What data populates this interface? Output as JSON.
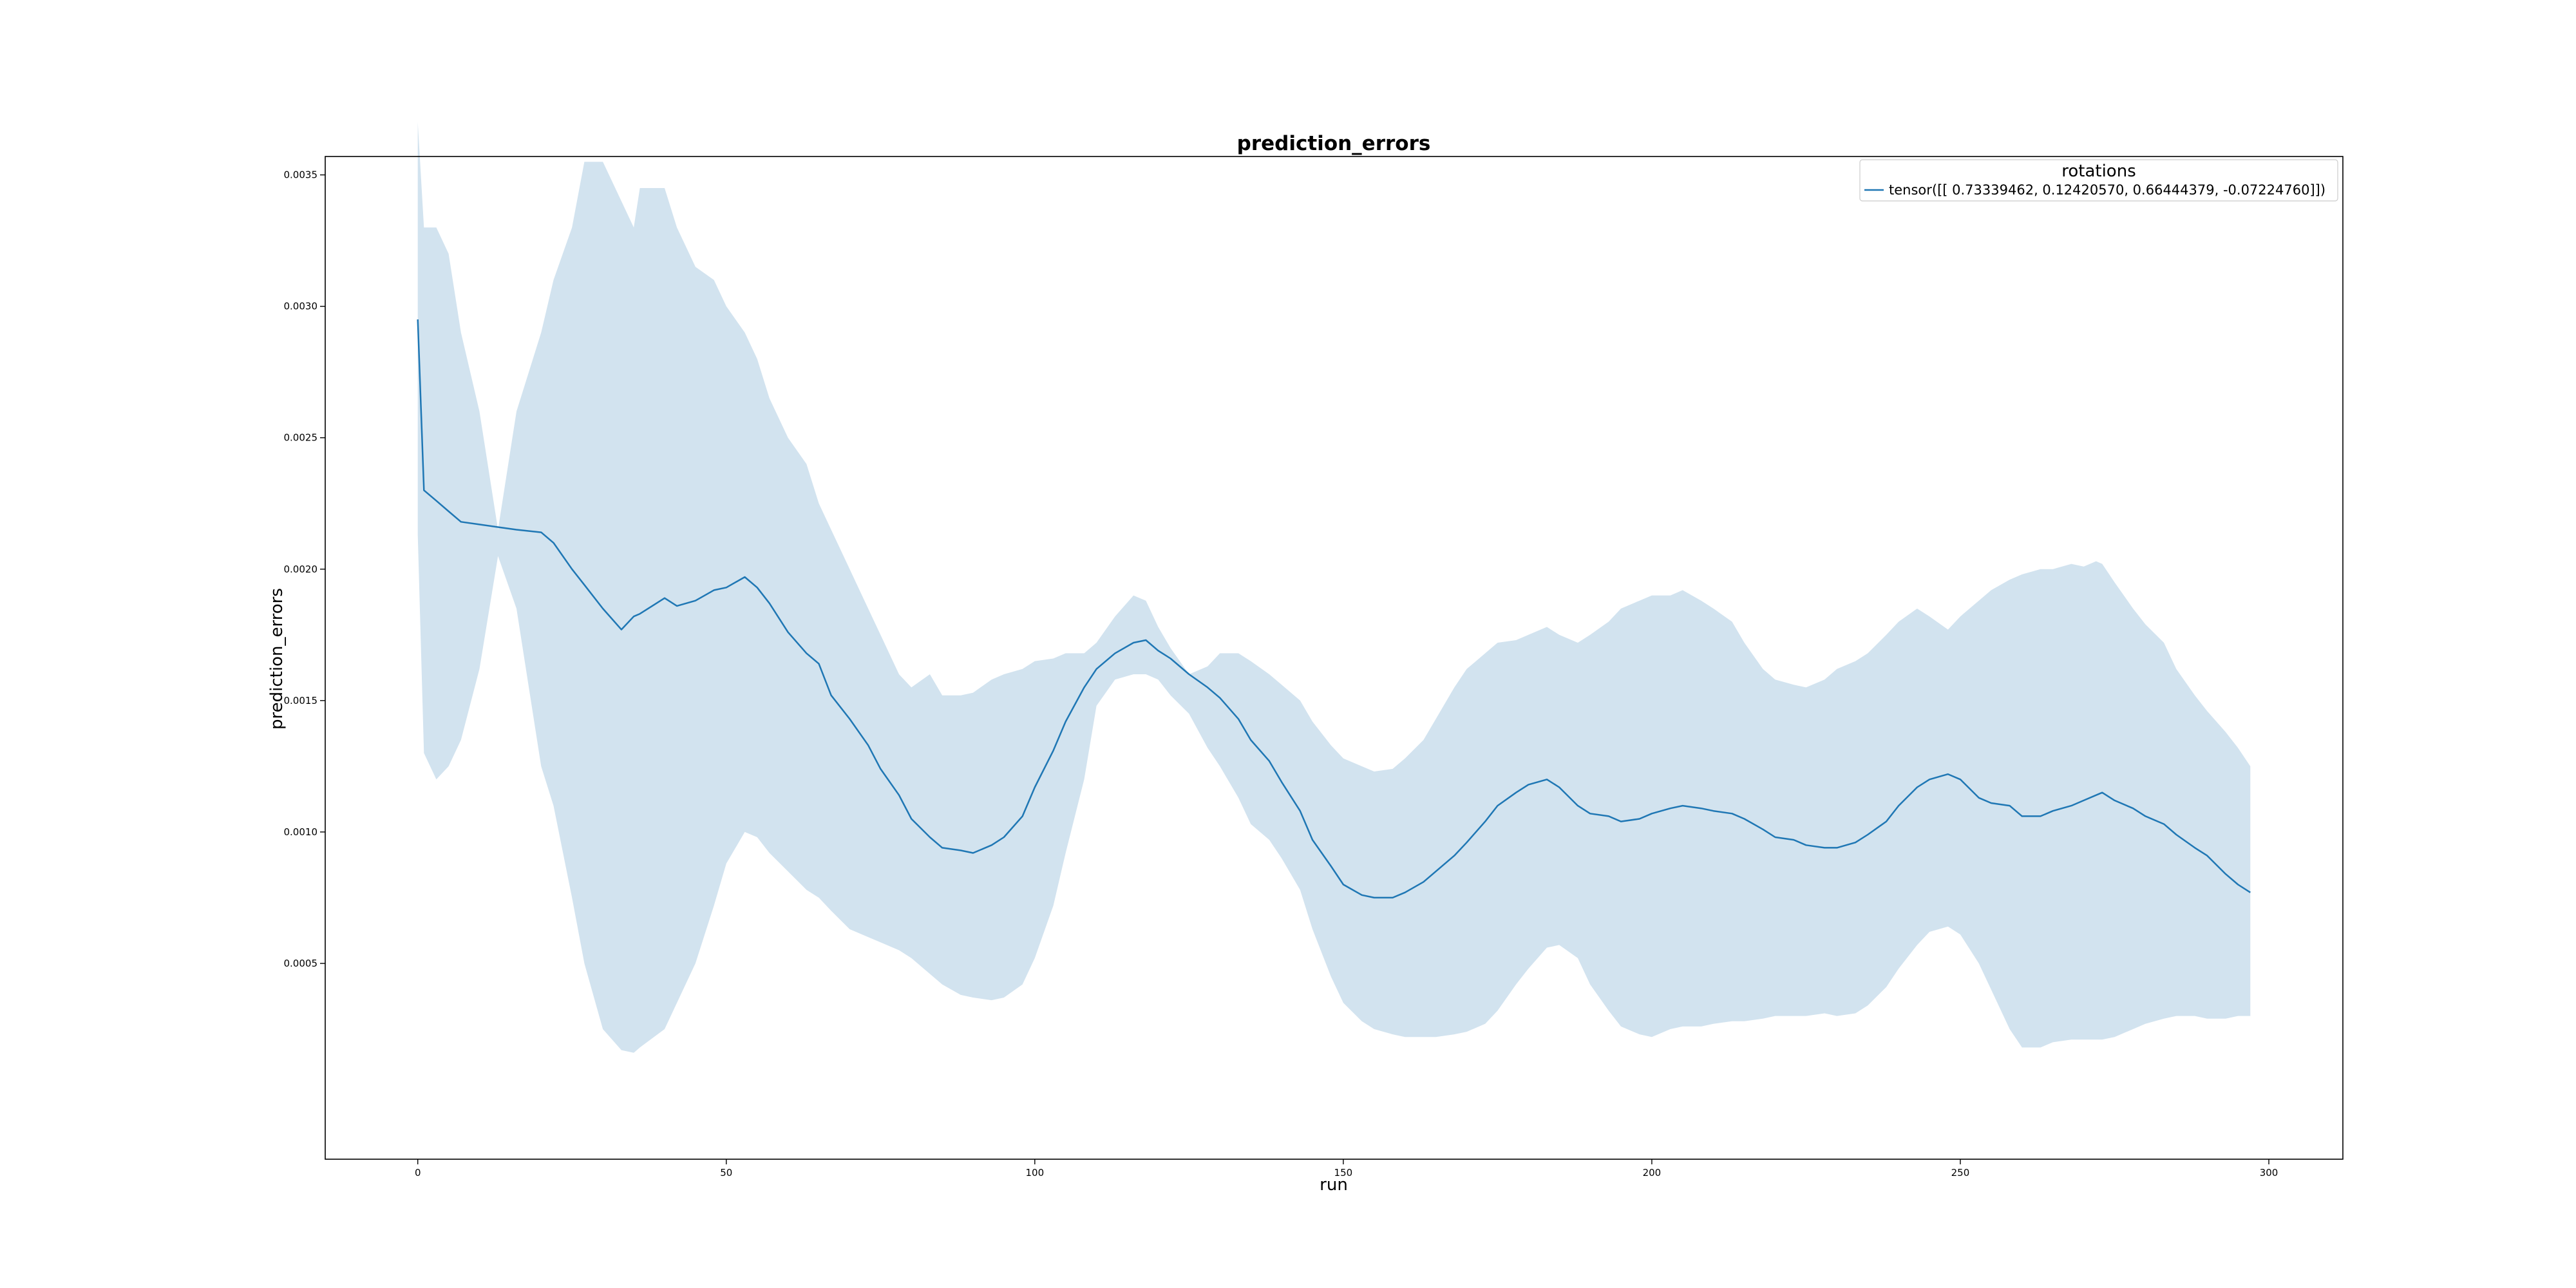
{
  "chart_data": {
    "type": "line",
    "title": "prediction_errors",
    "xlabel": "run",
    "ylabel": "prediction_errors",
    "xlim": [
      -15,
      312
    ],
    "ylim": [
      -0.000245,
      0.00357
    ],
    "x_ticks": [
      0,
      50,
      100,
      150,
      200,
      250,
      300
    ],
    "y_ticks": [
      0.0005,
      0.001,
      0.0015,
      0.002,
      0.0025,
      0.003,
      0.0035
    ],
    "x_tick_labels": [
      "0",
      "50",
      "100",
      "150",
      "200",
      "250",
      "300"
    ],
    "y_tick_labels": [
      "0.0005",
      "0.0010",
      "0.0015",
      "0.0020",
      "0.0025",
      "0.0030",
      "0.0035"
    ],
    "grid": false,
    "legend": {
      "title": "rotations",
      "position": "top-right",
      "entries": [
        "tensor([[ 0.73339462,  0.12420570,  0.66444379, -0.07224760]])"
      ]
    },
    "colors": {
      "line": "#1f77b4",
      "band": "#d2e3ef"
    },
    "series": [
      {
        "name": "tensor([[ 0.73339462,  0.12420570,  0.66444379, -0.07224760]])",
        "x": [
          0,
          1,
          3,
          5,
          7,
          10,
          13,
          16,
          20,
          22,
          25,
          27,
          30,
          33,
          35,
          36,
          40,
          42,
          45,
          48,
          50,
          53,
          55,
          57,
          60,
          63,
          65,
          67,
          70,
          73,
          75,
          78,
          80,
          83,
          85,
          88,
          90,
          93,
          95,
          98,
          100,
          103,
          105,
          108,
          110,
          113,
          116,
          118,
          120,
          122,
          125,
          128,
          130,
          133,
          135,
          138,
          140,
          143,
          145,
          148,
          150,
          153,
          155,
          158,
          160,
          163,
          165,
          168,
          170,
          173,
          175,
          178,
          180,
          183,
          185,
          188,
          190,
          193,
          195,
          198,
          200,
          203,
          205,
          208,
          210,
          213,
          215,
          218,
          220,
          223,
          225,
          228,
          230,
          233,
          235,
          238,
          240,
          243,
          245,
          248,
          250,
          253,
          255,
          258,
          260,
          263,
          265,
          268,
          270,
          272,
          273,
          275,
          278,
          280,
          283,
          285,
          288,
          290,
          293,
          295,
          297
        ],
        "y": [
          0.00295,
          0.0023,
          0.00226,
          0.00222,
          0.00218,
          0.00217,
          0.00216,
          0.00215,
          0.00214,
          0.0021,
          0.002,
          0.00194,
          0.00185,
          0.00177,
          0.00182,
          0.00183,
          0.00189,
          0.00186,
          0.00188,
          0.00192,
          0.00193,
          0.00197,
          0.00193,
          0.00187,
          0.00176,
          0.00168,
          0.00164,
          0.00152,
          0.00143,
          0.00133,
          0.00124,
          0.00114,
          0.00105,
          0.00098,
          0.00094,
          0.00093,
          0.00092,
          0.00095,
          0.00098,
          0.00106,
          0.00117,
          0.00131,
          0.00142,
          0.00155,
          0.00162,
          0.00168,
          0.00172,
          0.00173,
          0.00169,
          0.00166,
          0.0016,
          0.00155,
          0.00151,
          0.00143,
          0.00135,
          0.00127,
          0.00119,
          0.00108,
          0.00097,
          0.00087,
          0.0008,
          0.00076,
          0.00075,
          0.00075,
          0.00077,
          0.00081,
          0.00085,
          0.00091,
          0.00096,
          0.00104,
          0.0011,
          0.00115,
          0.00118,
          0.0012,
          0.00117,
          0.0011,
          0.00107,
          0.00106,
          0.00104,
          0.00105,
          0.00107,
          0.00109,
          0.0011,
          0.00109,
          0.00108,
          0.00107,
          0.00105,
          0.00101,
          0.00098,
          0.00097,
          0.00095,
          0.00094,
          0.00094,
          0.00096,
          0.00099,
          0.00104,
          0.0011,
          0.00117,
          0.0012,
          0.00122,
          0.0012,
          0.00113,
          0.00111,
          0.0011,
          0.00106,
          0.00106,
          0.00108,
          0.0011,
          0.00112,
          0.00114,
          0.00115,
          0.00112,
          0.00109,
          0.00106,
          0.00103,
          0.00099,
          0.00094,
          0.00091,
          0.00084,
          0.0008,
          0.00077
        ],
        "lower": [
          0.00213,
          0.0013,
          0.0012,
          0.00125,
          0.00135,
          0.00162,
          0.00205,
          0.00185,
          0.00125,
          0.0011,
          0.00075,
          0.0005,
          0.00025,
          0.00017,
          0.00016,
          0.00018,
          0.00025,
          0.00035,
          0.0005,
          0.00072,
          0.00088,
          0.001,
          0.00098,
          0.00092,
          0.00085,
          0.00078,
          0.00075,
          0.0007,
          0.00063,
          0.0006,
          0.00058,
          0.00055,
          0.00052,
          0.00046,
          0.00042,
          0.00038,
          0.00037,
          0.00036,
          0.00037,
          0.00042,
          0.00052,
          0.00072,
          0.00092,
          0.0012,
          0.00148,
          0.00158,
          0.0016,
          0.0016,
          0.00158,
          0.00152,
          0.00145,
          0.00132,
          0.00125,
          0.00113,
          0.00103,
          0.00097,
          0.0009,
          0.00078,
          0.00063,
          0.00045,
          0.00035,
          0.00028,
          0.00025,
          0.00023,
          0.00022,
          0.00022,
          0.00022,
          0.00023,
          0.00024,
          0.00027,
          0.00032,
          0.00042,
          0.00048,
          0.00056,
          0.00057,
          0.00052,
          0.00042,
          0.00032,
          0.00026,
          0.00023,
          0.00022,
          0.00025,
          0.00026,
          0.00026,
          0.00027,
          0.00028,
          0.00028,
          0.00029,
          0.0003,
          0.0003,
          0.0003,
          0.00031,
          0.0003,
          0.00031,
          0.00034,
          0.00041,
          0.00048,
          0.00057,
          0.00062,
          0.00064,
          0.00061,
          0.0005,
          0.0004,
          0.00025,
          0.00018,
          0.00018,
          0.0002,
          0.00021,
          0.00021,
          0.00021,
          0.00021,
          0.00022,
          0.00025,
          0.00027,
          0.00029,
          0.0003,
          0.0003,
          0.00029,
          0.00029,
          0.0003,
          0.0003
        ],
        "upper": [
          0.0037,
          0.0033,
          0.0033,
          0.0032,
          0.0029,
          0.0026,
          0.00215,
          0.0026,
          0.0029,
          0.0031,
          0.0033,
          0.00355,
          0.00355,
          0.0034,
          0.0033,
          0.00345,
          0.00345,
          0.0033,
          0.00315,
          0.0031,
          0.003,
          0.0029,
          0.0028,
          0.00265,
          0.0025,
          0.0024,
          0.00225,
          0.00215,
          0.002,
          0.00185,
          0.00175,
          0.0016,
          0.00155,
          0.0016,
          0.00152,
          0.00152,
          0.00153,
          0.00158,
          0.0016,
          0.00162,
          0.00165,
          0.00166,
          0.00168,
          0.00168,
          0.00172,
          0.00182,
          0.0019,
          0.00188,
          0.00178,
          0.0017,
          0.0016,
          0.00163,
          0.00168,
          0.00168,
          0.00165,
          0.0016,
          0.00156,
          0.0015,
          0.00142,
          0.00133,
          0.00128,
          0.00125,
          0.00123,
          0.00124,
          0.00128,
          0.00135,
          0.00143,
          0.00155,
          0.00162,
          0.00168,
          0.00172,
          0.00173,
          0.00175,
          0.00178,
          0.00175,
          0.00172,
          0.00175,
          0.0018,
          0.00185,
          0.00188,
          0.0019,
          0.0019,
          0.00192,
          0.00188,
          0.00185,
          0.0018,
          0.00172,
          0.00162,
          0.00158,
          0.00156,
          0.00155,
          0.00158,
          0.00162,
          0.00165,
          0.00168,
          0.00175,
          0.0018,
          0.00185,
          0.00182,
          0.00177,
          0.00182,
          0.00188,
          0.00192,
          0.00196,
          0.00198,
          0.002,
          0.002,
          0.00202,
          0.00201,
          0.00203,
          0.00202,
          0.00195,
          0.00185,
          0.00179,
          0.00172,
          0.00162,
          0.00152,
          0.00146,
          0.00138,
          0.00132,
          0.00125
        ]
      }
    ]
  }
}
